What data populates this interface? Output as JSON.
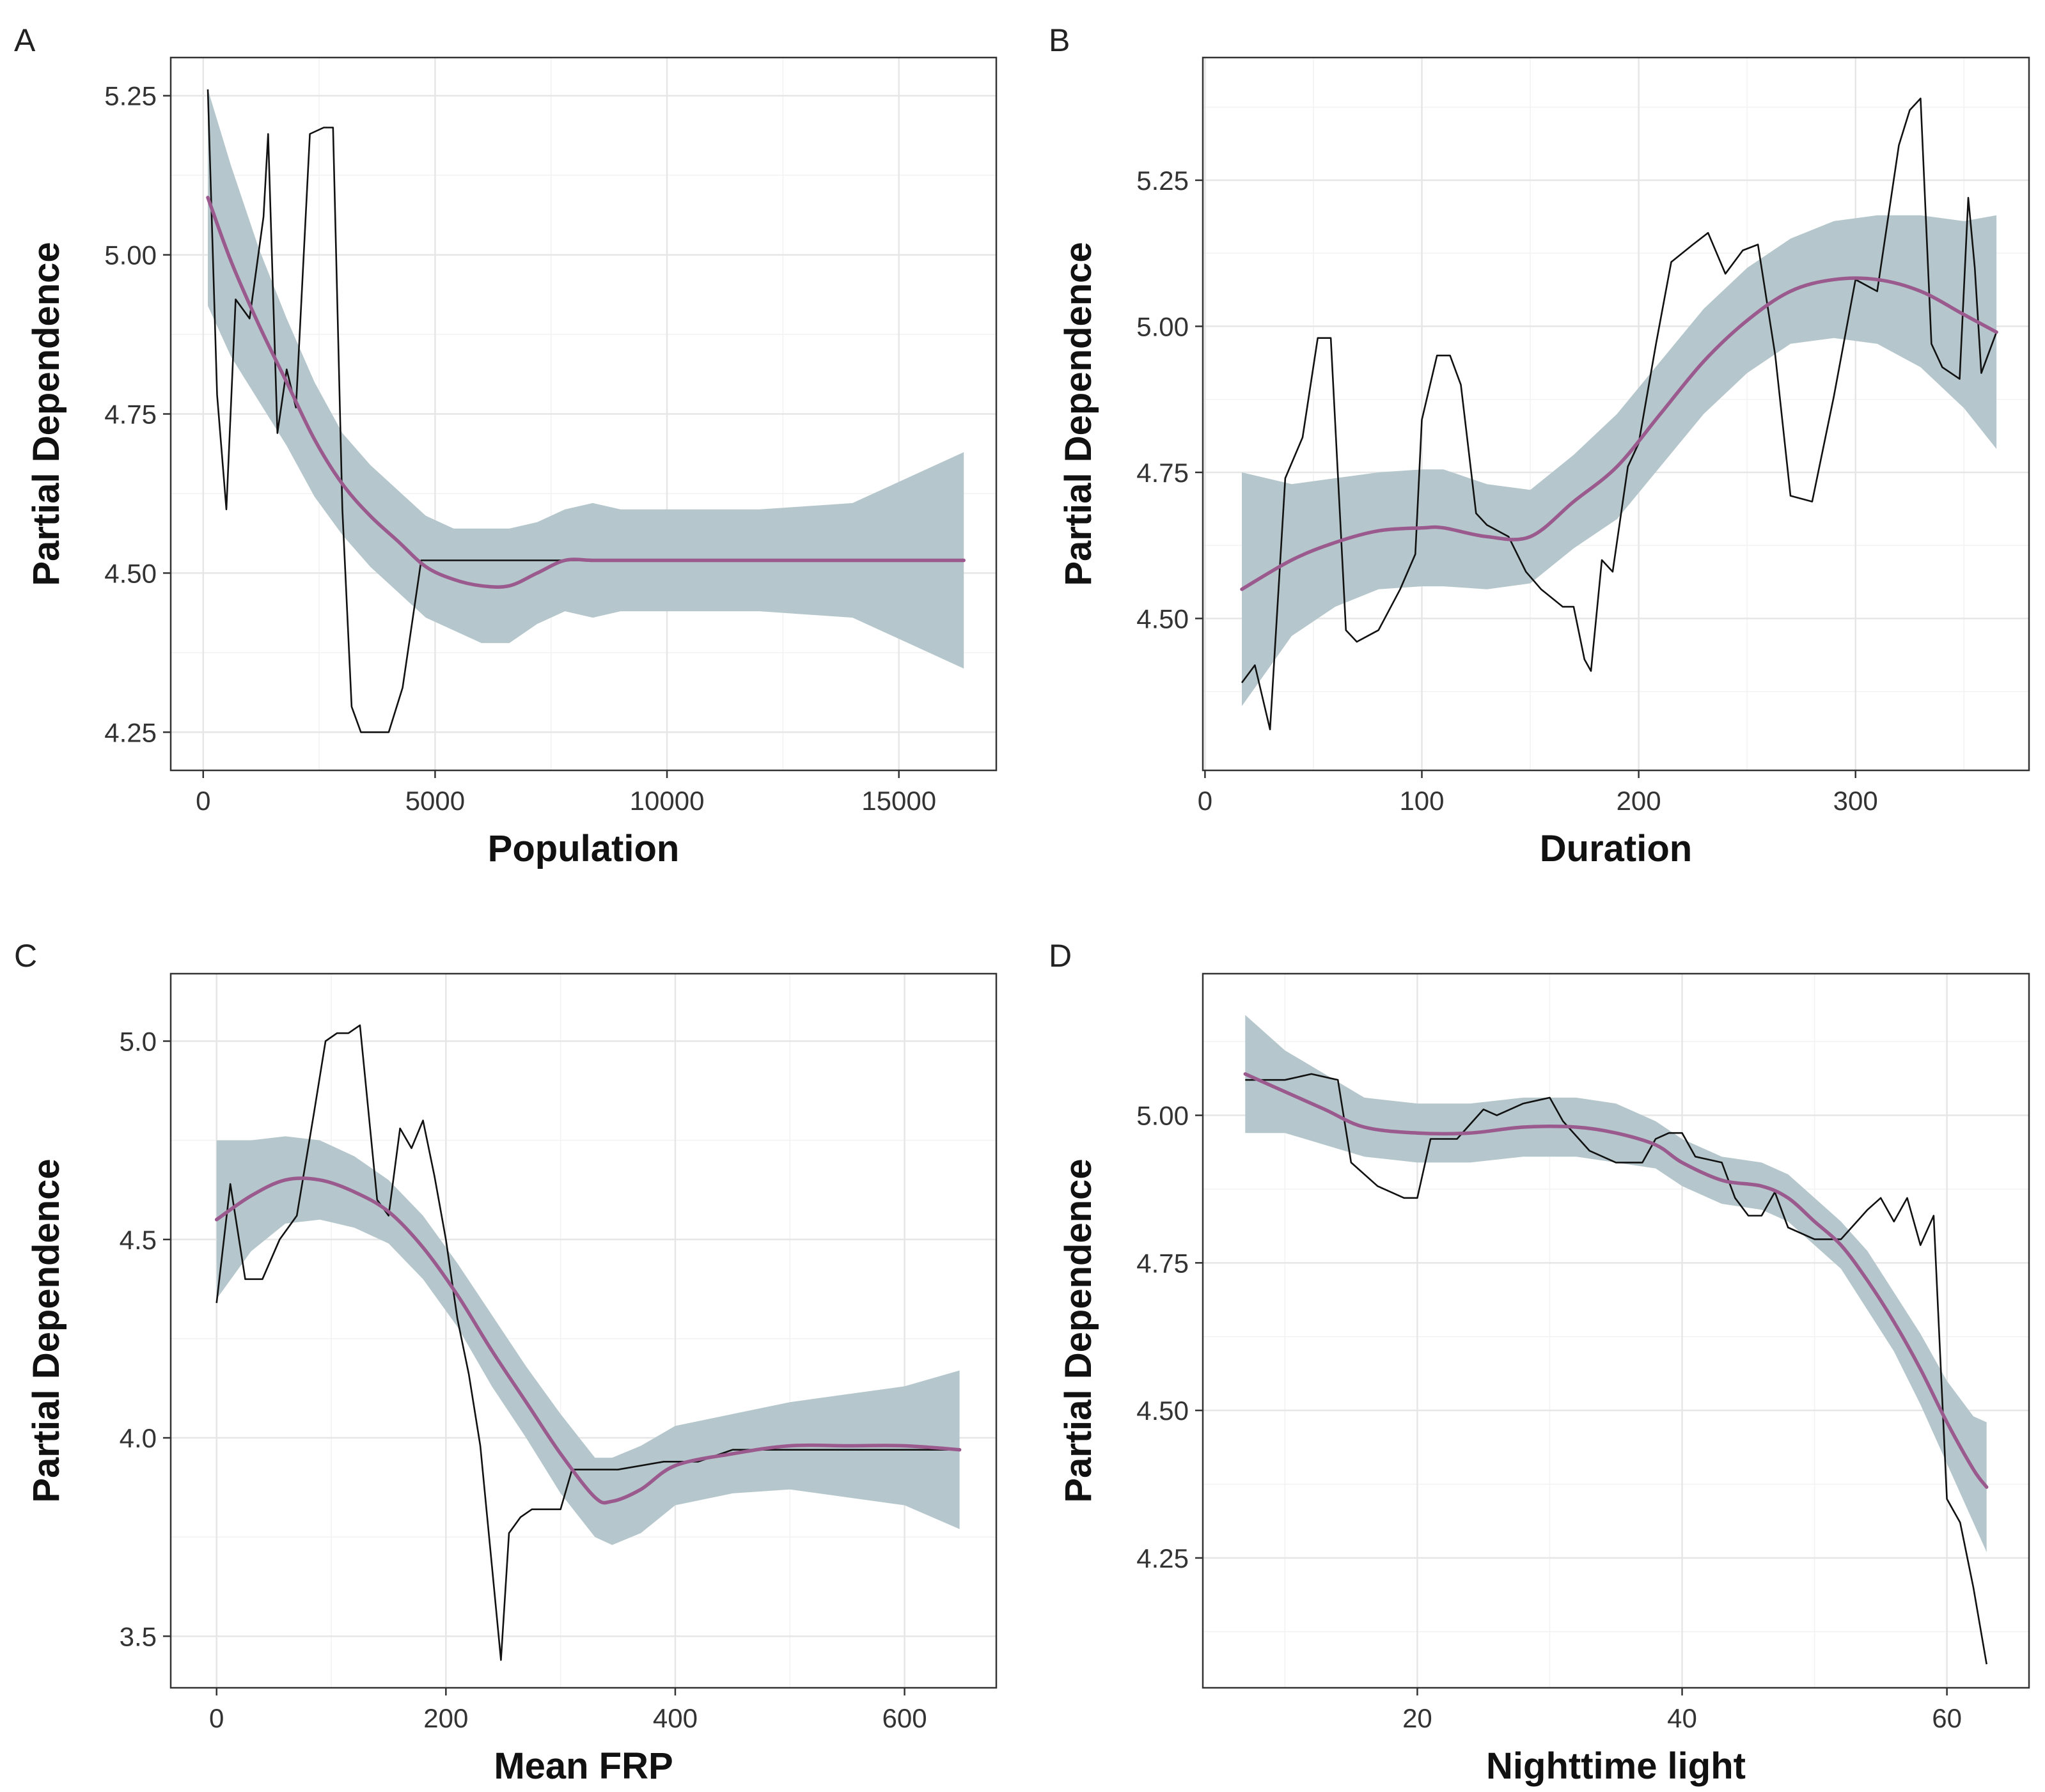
{
  "colors": {
    "band": "#b5c7cc",
    "smooth": "#9b5a8e",
    "pd_line": "#111111",
    "grid": "#e6e6e6"
  },
  "chart_data": [
    {
      "panel": "A",
      "type": "line",
      "xlabel": "Population",
      "ylabel": "Partial Dependence",
      "xlim": [
        -700,
        17100
      ],
      "ylim": [
        4.19,
        5.31
      ],
      "xticks": [
        0,
        5000,
        10000,
        15000
      ],
      "xtick_labels": [
        "0",
        "5000",
        "10000",
        "15000"
      ],
      "yticks": [
        4.25,
        4.5,
        4.75,
        5.0,
        5.25
      ],
      "ytick_labels": [
        "4.25",
        "4.50",
        "4.75",
        "5.00",
        "5.25"
      ],
      "pd_x": [
        100,
        300,
        500,
        700,
        1000,
        1300,
        1400,
        1600,
        1800,
        2000,
        2300,
        2600,
        2800,
        3000,
        3200,
        3400,
        3600,
        4000,
        4300,
        4700,
        5000,
        6000,
        10000
      ],
      "pd_y": [
        5.26,
        4.78,
        4.6,
        4.93,
        4.9,
        5.06,
        5.19,
        4.72,
        4.82,
        4.76,
        5.19,
        5.2,
        5.2,
        4.6,
        4.29,
        4.25,
        4.25,
        4.25,
        4.32,
        4.52,
        4.52,
        4.52,
        4.52
      ],
      "smooth_x": [
        100,
        600,
        1200,
        1800,
        2400,
        3000,
        3600,
        4200,
        4800,
        5400,
        6000,
        6600,
        7200,
        7800,
        8400,
        9000,
        10000,
        12000,
        14000,
        16400
      ],
      "smooth_y": [
        5.09,
        4.99,
        4.89,
        4.8,
        4.71,
        4.64,
        4.59,
        4.55,
        4.51,
        4.49,
        4.48,
        4.48,
        4.5,
        4.52,
        4.52,
        4.52,
        4.52,
        4.52,
        4.52,
        4.52
      ],
      "band_width": [
        0.17,
        0.15,
        0.12,
        0.1,
        0.09,
        0.08,
        0.08,
        0.08,
        0.08,
        0.08,
        0.09,
        0.09,
        0.08,
        0.08,
        0.09,
        0.08,
        0.08,
        0.08,
        0.09,
        0.17
      ]
    },
    {
      "panel": "B",
      "type": "line",
      "xlabel": "Duration",
      "ylabel": "Partial Dependence",
      "xlim": [
        -1,
        380
      ],
      "ylim": [
        4.24,
        5.46
      ],
      "xticks": [
        0,
        100,
        200,
        300
      ],
      "xtick_labels": [
        "0",
        "100",
        "200",
        "300"
      ],
      "yticks": [
        4.5,
        4.75,
        5.0,
        5.25
      ],
      "ytick_labels": [
        "4.50",
        "4.75",
        "5.00",
        "5.25"
      ],
      "pd_x": [
        17,
        23,
        30,
        37,
        45,
        52,
        58,
        65,
        70,
        80,
        90,
        97,
        100,
        107,
        113,
        118,
        125,
        130,
        140,
        148,
        155,
        165,
        170,
        175,
        178,
        183,
        188,
        195,
        200,
        208,
        215,
        225,
        232,
        240,
        248,
        255,
        263,
        270,
        280,
        290,
        300,
        310,
        320,
        325,
        330,
        335,
        340,
        348,
        352,
        355,
        358,
        365
      ],
      "pd_y": [
        4.39,
        4.42,
        4.31,
        4.74,
        4.81,
        4.98,
        4.98,
        4.48,
        4.46,
        4.48,
        4.55,
        4.61,
        4.84,
        4.95,
        4.95,
        4.9,
        4.68,
        4.66,
        4.64,
        4.58,
        4.55,
        4.52,
        4.52,
        4.43,
        4.41,
        4.6,
        4.58,
        4.76,
        4.8,
        4.97,
        5.11,
        5.14,
        5.16,
        5.09,
        5.13,
        5.14,
        4.95,
        4.71,
        4.7,
        4.88,
        5.08,
        5.06,
        5.31,
        5.37,
        5.39,
        4.97,
        4.93,
        4.91,
        5.22,
        5.1,
        4.92,
        4.99
      ],
      "smooth_x": [
        17,
        40,
        60,
        80,
        100,
        110,
        130,
        150,
        170,
        190,
        210,
        230,
        250,
        270,
        290,
        310,
        330,
        350,
        365
      ],
      "smooth_y": [
        4.55,
        4.6,
        4.63,
        4.65,
        4.655,
        4.655,
        4.64,
        4.64,
        4.7,
        4.76,
        4.85,
        4.94,
        5.01,
        5.06,
        5.08,
        5.08,
        5.06,
        5.02,
        4.99
      ],
      "band_width": [
        0.2,
        0.13,
        0.11,
        0.1,
        0.1,
        0.1,
        0.09,
        0.08,
        0.08,
        0.09,
        0.09,
        0.09,
        0.09,
        0.09,
        0.1,
        0.11,
        0.13,
        0.16,
        0.2
      ]
    },
    {
      "panel": "C",
      "type": "line",
      "xlabel": "Mean FRP",
      "ylabel": "Partial Dependence",
      "xlim": [
        -40,
        680
      ],
      "ylim": [
        3.37,
        5.17
      ],
      "xticks": [
        0,
        200,
        400,
        600
      ],
      "xtick_labels": [
        "0",
        "200",
        "400",
        "600"
      ],
      "yticks": [
        3.5,
        4.0,
        4.5,
        5.0
      ],
      "ytick_labels": [
        "3.5",
        "4.0",
        "4.5",
        "5.0"
      ],
      "pd_x": [
        0,
        12,
        25,
        40,
        55,
        70,
        85,
        95,
        105,
        115,
        125,
        140,
        150,
        160,
        170,
        180,
        190,
        200,
        210,
        220,
        230,
        240,
        248,
        255,
        265,
        275,
        290,
        300,
        310,
        350,
        390,
        420,
        450,
        500,
        550,
        600,
        648
      ],
      "pd_y": [
        4.34,
        4.64,
        4.4,
        4.4,
        4.5,
        4.56,
        4.82,
        5.0,
        5.02,
        5.02,
        5.04,
        4.6,
        4.56,
        4.78,
        4.73,
        4.8,
        4.66,
        4.5,
        4.3,
        4.16,
        3.98,
        3.68,
        3.44,
        3.76,
        3.8,
        3.82,
        3.82,
        3.82,
        3.92,
        3.92,
        3.94,
        3.94,
        3.97,
        3.97,
        3.97,
        3.97,
        3.97
      ],
      "smooth_x": [
        0,
        30,
        60,
        90,
        120,
        150,
        180,
        210,
        240,
        270,
        300,
        330,
        345,
        370,
        400,
        450,
        500,
        550,
        600,
        648
      ],
      "smooth_y": [
        4.55,
        4.61,
        4.65,
        4.65,
        4.62,
        4.57,
        4.48,
        4.36,
        4.22,
        4.09,
        3.96,
        3.85,
        3.84,
        3.87,
        3.93,
        3.96,
        3.98,
        3.98,
        3.98,
        3.97
      ],
      "band_width": [
        0.2,
        0.14,
        0.11,
        0.1,
        0.09,
        0.08,
        0.08,
        0.08,
        0.09,
        0.09,
        0.1,
        0.1,
        0.11,
        0.11,
        0.1,
        0.1,
        0.11,
        0.13,
        0.15,
        0.2
      ]
    },
    {
      "panel": "D",
      "type": "line",
      "xlabel": "Nighttime light",
      "ylabel": "Partial Dependence",
      "xlim": [
        3.8,
        66.2
      ],
      "ylim": [
        4.03,
        5.24
      ],
      "xticks": [
        20,
        40,
        60
      ],
      "xtick_labels": [
        "20",
        "40",
        "60"
      ],
      "yticks": [
        4.25,
        4.5,
        4.75,
        5.0
      ],
      "ytick_labels": [
        "4.25",
        "4.50",
        "4.75",
        "5.00"
      ],
      "pd_x": [
        7,
        10,
        12,
        14,
        15,
        17,
        19,
        20,
        21,
        22,
        23,
        25,
        26,
        28,
        30,
        31,
        33,
        35,
        37,
        38,
        39,
        40,
        41,
        43,
        44,
        45,
        46,
        47,
        48,
        50,
        52,
        54,
        55,
        56,
        57,
        58,
        59,
        60,
        61,
        62,
        63
      ],
      "pd_y": [
        5.06,
        5.06,
        5.07,
        5.06,
        4.92,
        4.88,
        4.86,
        4.86,
        4.96,
        4.96,
        4.96,
        5.01,
        5.0,
        5.02,
        5.03,
        4.99,
        4.94,
        4.92,
        4.92,
        4.96,
        4.97,
        4.97,
        4.93,
        4.92,
        4.86,
        4.83,
        4.83,
        4.87,
        4.81,
        4.79,
        4.79,
        4.84,
        4.86,
        4.82,
        4.86,
        4.78,
        4.83,
        4.35,
        4.31,
        4.2,
        4.07
      ],
      "smooth_x": [
        7,
        10,
        13,
        16,
        20,
        24,
        28,
        32,
        35,
        38,
        40,
        43,
        46,
        48,
        50,
        52,
        54,
        56,
        58,
        60,
        62,
        63
      ],
      "smooth_y": [
        5.07,
        5.04,
        5.01,
        4.98,
        4.97,
        4.97,
        4.98,
        4.98,
        4.97,
        4.95,
        4.92,
        4.89,
        4.88,
        4.86,
        4.82,
        4.78,
        4.72,
        4.65,
        4.57,
        4.48,
        4.4,
        4.37
      ],
      "band_width": [
        0.1,
        0.07,
        0.06,
        0.05,
        0.05,
        0.05,
        0.05,
        0.05,
        0.05,
        0.04,
        0.04,
        0.04,
        0.04,
        0.04,
        0.04,
        0.04,
        0.05,
        0.05,
        0.06,
        0.07,
        0.09,
        0.11
      ]
    }
  ]
}
